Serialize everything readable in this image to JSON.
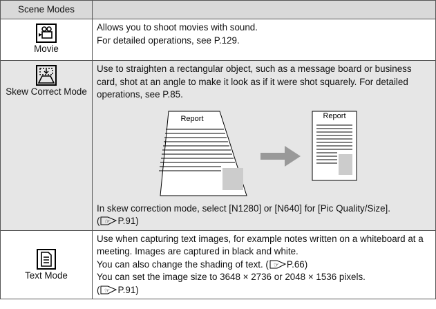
{
  "table": {
    "header": [
      "Scene Modes",
      ""
    ],
    "rows": [
      {
        "mode": "Movie",
        "lines": [
          "Allows you to shoot movies with sound.",
          "For detailed operations, see P.129."
        ]
      },
      {
        "mode": "Skew Correct Mode",
        "lines": [
          "Use to straighten a rectangular object, such as a message board or business card, shot at an angle to make it look as if it were shot squarely. For detailed operations, see P.85."
        ],
        "diagram": {
          "before": "Report",
          "after": "Report"
        },
        "note": "In skew correction mode, select [N1280] or [N640] for [Pic Quality/Size].",
        "ref": [
          "(",
          "P.91)"
        ]
      },
      {
        "mode": "Text Mode",
        "lines": [
          "Use when capturing text images, for example notes written on a whiteboard at a meeting. Images are captured in black and white."
        ],
        "ref1": [
          "You can also change the shading of text. (",
          "P.66)"
        ],
        "line2": "You can set the image size to 3648 × 2736 or 2048 × 1536 pixels.",
        "ref2": [
          "(",
          "P.91)"
        ]
      }
    ]
  }
}
